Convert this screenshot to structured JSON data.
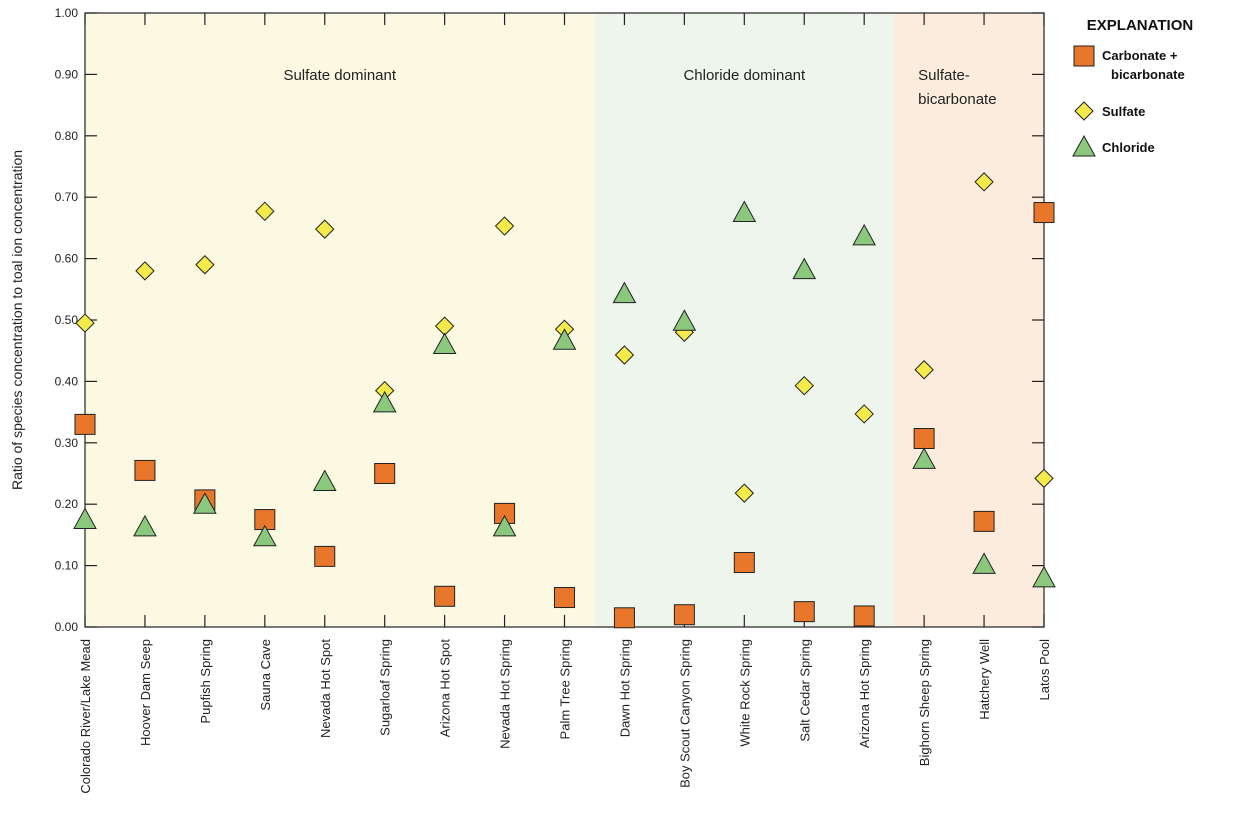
{
  "chart_data": {
    "type": "scatter",
    "title": "",
    "xlabel": "",
    "ylabel": "Ratio of species concentration to toal ion concentration",
    "ylim": [
      0,
      1.0
    ],
    "yticks": [
      "0.00",
      "0.10",
      "0.20",
      "0.30",
      "0.40",
      "0.50",
      "0.60",
      "0.70",
      "0.80",
      "0.90",
      "1.00"
    ],
    "categories": [
      "Colorado River/Lake Mead",
      "Hoover Dam Seep",
      "Pupfish Spring",
      "Sauna Cave",
      "Nevada Hot Spot",
      "Sugarloaf Spring",
      "Arizona Hot Spot",
      "Nevada Hot Spring",
      "Palm Tree Spring",
      "Dawn Hot Spring",
      "Boy Scout Canyon Spring",
      "White Rock Spring",
      "Salt Cedar Spring",
      "Arizona Hot Spring",
      "Bighorn Sheep Spring",
      "Hatchery Well",
      "Latos Pool"
    ],
    "regions": [
      {
        "label": "Sulfate dominant",
        "start_index": 0,
        "end_index": 8,
        "color": "#fbf9e1"
      },
      {
        "label": "Chloride dominant",
        "start_index": 9,
        "end_index": 13,
        "color": "#eef5ec"
      },
      {
        "label_lines": [
          "Sulfate-",
          "bicarbonate"
        ],
        "start_index": 14,
        "end_index": 16,
        "color": "#fcecde"
      }
    ],
    "series": [
      {
        "name_lines": [
          "Carbonate +",
          "bicarbonate"
        ],
        "marker": "square",
        "color": "#e8772b",
        "values": [
          0.33,
          0.255,
          0.207,
          0.175,
          0.115,
          0.25,
          0.05,
          0.185,
          0.048,
          0.015,
          0.02,
          0.105,
          0.025,
          0.018,
          0.307,
          0.172,
          0.675
        ]
      },
      {
        "name": "Sulfate",
        "marker": "diamond",
        "color": "#f4ea4a",
        "values": [
          0.495,
          0.58,
          0.59,
          0.677,
          0.648,
          0.385,
          0.49,
          0.653,
          0.485,
          0.443,
          0.48,
          0.218,
          0.393,
          0.347,
          0.419,
          0.725,
          0.242
        ]
      },
      {
        "name": "Chloride",
        "marker": "triangle",
        "color": "#8cc77e",
        "values": [
          0.175,
          0.163,
          0.2,
          0.147,
          0.237,
          0.365,
          0.46,
          0.163,
          0.467,
          0.543,
          0.498,
          0.675,
          0.582,
          0.637,
          0.273,
          0.102,
          0.08
        ]
      }
    ],
    "legend": {
      "title": "EXPLANATION",
      "position": "top-right"
    }
  }
}
